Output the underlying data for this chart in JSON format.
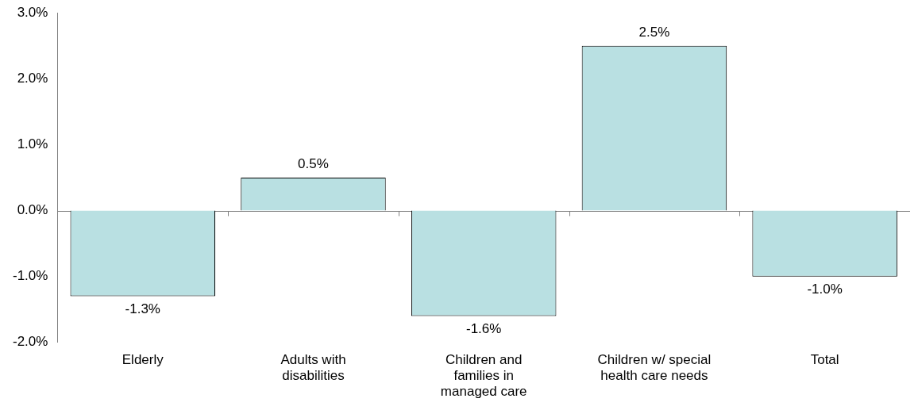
{
  "chart_data": {
    "type": "bar",
    "categories": [
      "Elderly",
      "Adults with disabilities",
      "Children and families in managed care",
      "Children w/ special health care needs",
      "Total"
    ],
    "values": [
      -1.3,
      0.5,
      -1.6,
      2.5,
      -1.0
    ],
    "value_labels": [
      "-1.3%",
      "0.5%",
      "-1.6%",
      "2.5%",
      "-1.0%"
    ],
    "color": "#b9e0e2",
    "ylim": [
      -2,
      3
    ],
    "yticks": [
      {
        "value": -2,
        "label": "-2.0%"
      },
      {
        "value": -1,
        "label": "-1.0%"
      },
      {
        "value": 0,
        "label": "0.0%"
      },
      {
        "value": 1,
        "label": "1.0%"
      },
      {
        "value": 2,
        "label": "2.0%"
      },
      {
        "value": 3,
        "label": "3.0%"
      }
    ],
    "ref_lines": [
      {
        "axis": "y",
        "value": 0,
        "color": "#808080"
      }
    ],
    "grid": false,
    "legend": false
  }
}
